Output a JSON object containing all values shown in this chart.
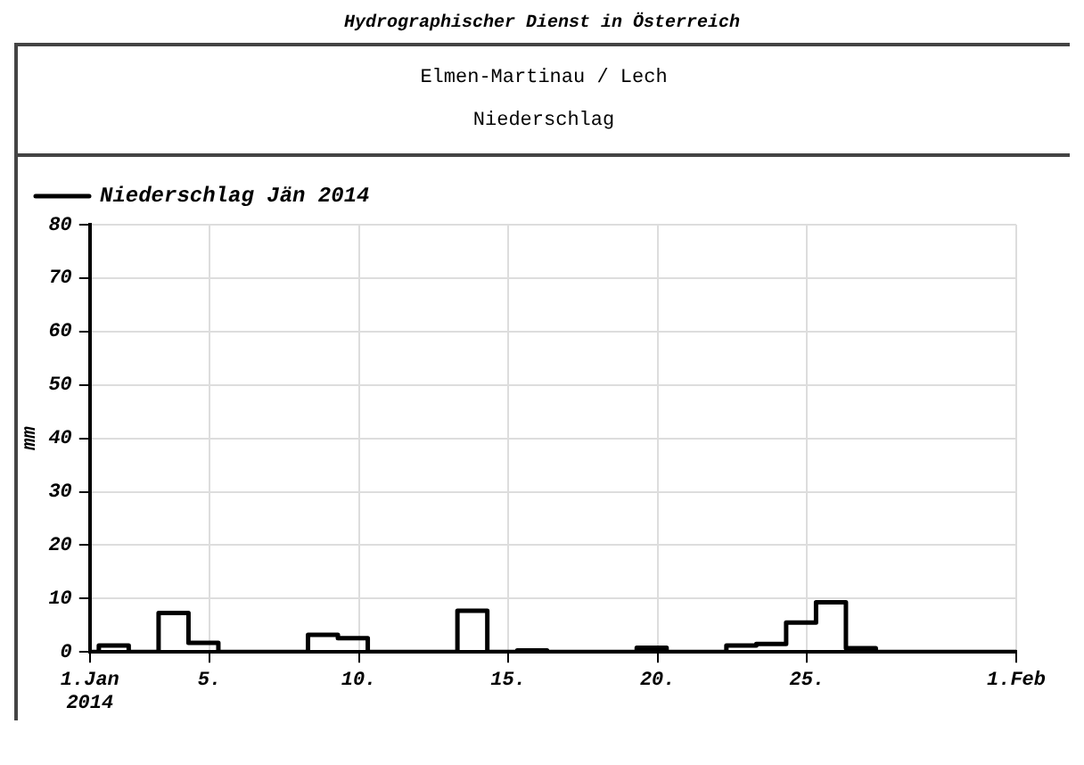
{
  "chart_data": {
    "type": "step",
    "title": "Elmen-Martinau / Lech",
    "subtitle": "Niederschlag",
    "ylabel": "mm",
    "annotations": [
      "Hydrographischer Dienst in Österreich"
    ],
    "x": [
      1,
      1.3,
      2.3,
      3.3,
      4.3,
      5.3,
      6.3,
      7.3,
      8.3,
      9.3,
      10.3,
      11.3,
      12.3,
      13.3,
      14.3,
      15.3,
      16.3,
      17.3,
      18.3,
      19.3,
      20.3,
      21.3,
      22.3,
      23.3,
      24.3,
      25.3,
      26.3,
      27.3,
      28.3,
      29.3,
      30.3,
      31.3,
      32
    ],
    "series": [
      {
        "name": "Niederschlag Jän 2014",
        "color": "#000000",
        "values": [
          0,
          0,
          1.2,
          0,
          7.3,
          1.7,
          0,
          0,
          0,
          3.2,
          2.6,
          0,
          0,
          0,
          7.7,
          0,
          0.3,
          0,
          0,
          0,
          0.8,
          0,
          0,
          1.2,
          1.5,
          5.5,
          9.3,
          0.7,
          0,
          0,
          0,
          0,
          0
        ]
      }
    ],
    "xlim": [
      1,
      32
    ],
    "xticks": [
      {
        "value": 1,
        "label": "1.Jan\n2014"
      },
      {
        "value": 5,
        "label": "5."
      },
      {
        "value": 10,
        "label": "10."
      },
      {
        "value": 15,
        "label": "15."
      },
      {
        "value": 20,
        "label": "20."
      },
      {
        "value": 25,
        "label": "25."
      },
      {
        "value": 32,
        "label": "1.Feb"
      }
    ],
    "ylim": [
      0,
      80
    ],
    "yticks": [
      0,
      10,
      20,
      30,
      40,
      50,
      60,
      70,
      80
    ],
    "grid": true,
    "legend": "top left"
  }
}
